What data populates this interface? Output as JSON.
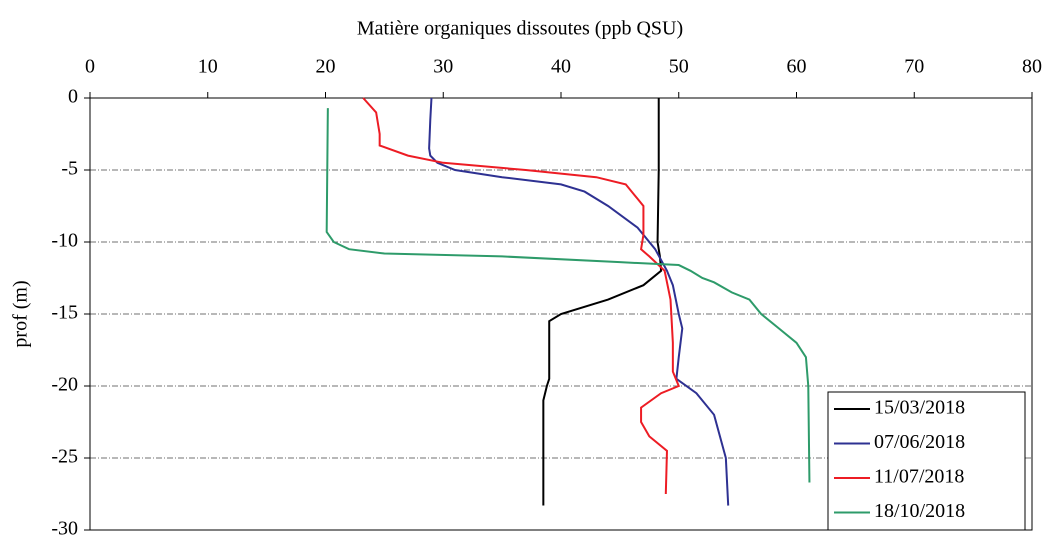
{
  "chart_data": {
    "type": "line",
    "xlabel": "Matière organiques dissoutes (ppb QSU)",
    "ylabel": "prof (m)",
    "xlim": [
      0,
      80
    ],
    "xticks": [
      0,
      10,
      20,
      30,
      40,
      50,
      60,
      70,
      80
    ],
    "ylim": [
      -30,
      0
    ],
    "yticks": [
      0,
      -5,
      -10,
      -15,
      -20,
      -25,
      -30
    ],
    "grid": true,
    "legend": "lower right",
    "series": [
      {
        "name": "15/03/2018",
        "color": "#000000",
        "x": [
          48.3,
          48.3,
          48.2,
          48.4,
          48.5,
          47,
          44,
          40,
          39,
          39,
          39,
          38.8,
          38.5,
          38.5
        ],
        "y": [
          0,
          -5,
          -10,
          -11,
          -12,
          -13,
          -14,
          -15,
          -15.5,
          -17,
          -19.5,
          -20,
          -21,
          -28.3
        ]
      },
      {
        "name": "07/06/2018",
        "color": "#2e3192",
        "x": [
          29,
          28.9,
          28.8,
          28.9,
          29.5,
          31,
          35,
          40,
          42,
          44,
          46.5,
          48,
          49,
          49.5,
          50,
          50.3,
          50,
          49.8,
          51.5,
          53,
          54,
          54.2
        ],
        "y": [
          0,
          -1.5,
          -3.5,
          -4,
          -4.5,
          -5,
          -5.5,
          -6,
          -6.5,
          -7.5,
          -9,
          -10.5,
          -12,
          -13,
          -15,
          -16,
          -18,
          -19.5,
          -20.5,
          -22,
          -25,
          -28.3
        ]
      },
      {
        "name": "11/07/2018",
        "color": "#ed1c24",
        "x": [
          23.2,
          24.3,
          24.6,
          24.6,
          27,
          30,
          37,
          43,
          45.5,
          46.5,
          47,
          47,
          46.8,
          47.5,
          48.8,
          49.3,
          49.5,
          49.5,
          50,
          48.5,
          46.8,
          46.8,
          47.5,
          49,
          48.9
        ],
        "y": [
          0,
          -1,
          -2.5,
          -3.3,
          -4,
          -4.5,
          -5,
          -5.5,
          -6,
          -7,
          -7.5,
          -9.5,
          -10.5,
          -11,
          -12,
          -14,
          -17,
          -19,
          -20,
          -20.5,
          -21.5,
          -22.5,
          -23.5,
          -24.5,
          -27.5
        ]
      },
      {
        "name": "18/10/2018",
        "color": "#2e9b6a",
        "x": [
          20.2,
          20.1,
          20.7,
          22,
          25,
          35,
          45,
          50,
          51,
          52,
          53,
          54.5,
          56,
          57,
          58.5,
          60,
          60.8,
          61,
          61.1
        ],
        "y": [
          -0.7,
          -9.3,
          -10,
          -10.5,
          -10.8,
          -11,
          -11.4,
          -11.6,
          -12,
          -12.5,
          -12.8,
          -13.5,
          -14,
          -15,
          -16,
          -17,
          -18,
          -20,
          -26.7
        ]
      }
    ]
  }
}
